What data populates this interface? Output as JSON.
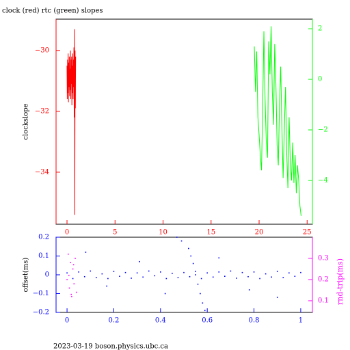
{
  "chart_data": [
    {
      "type": "line",
      "title": "clock (red) rtc (green) slopes",
      "ylabel": "clockslope",
      "xcolor": "#ff0000",
      "ycolor": "#ff0000",
      "y2color": "#00ff00",
      "xlim": [
        -1.14,
        25.55
      ],
      "xticks": [
        0,
        5,
        10,
        15,
        20,
        25
      ],
      "ylim": [
        -35.71,
        -28.97
      ],
      "yticks": [
        {
          "value": -30,
          "label": "−30"
        },
        {
          "value": -32,
          "label": "−32"
        },
        {
          "value": -34,
          "label": "−34"
        }
      ],
      "y2lim": [
        -5.73,
        2.38
      ],
      "y2ticks": [
        2,
        0,
        {
          "value": -2,
          "label": "−2"
        },
        {
          "value": -4,
          "label": "−4"
        }
      ],
      "series": [
        {
          "color": "#ff0000",
          "x": [
            0,
            0.03,
            0.06,
            0.09,
            0.12,
            0.15,
            0.18,
            0.21,
            0.24,
            0.27,
            0.3,
            0.33,
            0.36,
            0.39,
            0.42,
            0.45,
            0.48,
            0.51,
            0.54,
            0.57,
            0.6,
            0.63,
            0.66,
            0.69,
            0.72,
            0.75,
            0.78,
            0.81,
            0.84,
            0.87,
            0.9
          ],
          "values": [
            -30.5,
            -31.6,
            -30.3,
            -31.4,
            -30.1,
            -31.7,
            -30.4,
            -31.2,
            -30.2,
            -31.5,
            -30.6,
            -31.3,
            -30.0,
            -31.6,
            -30.3,
            -31.1,
            -30.2,
            -31.8,
            -30.5,
            -31.4,
            -30.1,
            -31.6,
            -30.3,
            -31.2,
            -29.9,
            -32.2,
            -29.3,
            -35.4,
            -30.0,
            -31.9,
            -30.2
          ]
        },
        {
          "color": "#00ff00",
          "axis": "y2",
          "x": [
            19.5,
            19.625,
            19.75,
            19.875,
            20,
            20.125,
            20.25,
            20.375,
            20.5,
            20.625,
            20.75,
            20.875,
            21,
            21.125,
            21.25,
            21.375,
            21.5,
            21.625,
            21.75,
            21.875,
            22,
            22.125,
            22.25,
            22.375,
            22.5,
            22.625,
            22.75,
            22.875,
            23,
            23.125,
            23.25,
            23.375,
            23.5,
            23.625,
            23.75,
            23.875,
            24,
            24.125,
            24.25,
            24.375
          ],
          "values": [
            1.3,
            -0.5,
            1.1,
            -1.5,
            -2.2,
            -3.0,
            -3.6,
            -1.0,
            1.9,
            -0.8,
            -2.5,
            -3.1,
            1.5,
            0.2,
            2.1,
            -0.5,
            -1.8,
            1.4,
            -0.2,
            -2.6,
            -3.4,
            -1.0,
            0.5,
            -1.9,
            -3.9,
            -2.0,
            -0.3,
            -2.9,
            -4.3,
            -1.5,
            -3.3,
            -4.0,
            -2.5,
            -4.1,
            -3.0,
            -4.5,
            -3.4,
            -4.0,
            -5.0,
            -5.4
          ]
        }
      ]
    },
    {
      "type": "scatter",
      "ylabel": "offset(ms)",
      "y2label": "rnd-trip(ms)",
      "xcolor": "#0000ff",
      "ycolor": "#0000ff",
      "y2color": "#ff00ff",
      "xlim": [
        -0.047,
        1.05
      ],
      "xticks": [
        0,
        0.2,
        0.4,
        0.6,
        0.8,
        1
      ],
      "ylim": [
        -0.2,
        0.2
      ],
      "yticks": [
        0.2,
        0.1,
        0,
        {
          "value": -0.1,
          "label": "−0.1"
        },
        {
          "value": -0.2,
          "label": "−0.2"
        }
      ],
      "y2lim": [
        0.045,
        0.4
      ],
      "y2ticks": [
        0.3,
        0.2,
        0.1
      ],
      "series": [
        {
          "color": "#0000ff",
          "x": [
            0,
            0.025,
            0.05,
            0.075,
            0.1,
            0.125,
            0.15,
            0.175,
            0.2,
            0.225,
            0.25,
            0.275,
            0.3,
            0.325,
            0.35,
            0.375,
            0.4,
            0.425,
            0.45,
            0.475,
            0.5,
            0.525,
            0.55,
            0.575,
            0.6,
            0.625,
            0.65,
            0.675,
            0.7,
            0.725,
            0.75,
            0.775,
            0.8,
            0.825,
            0.85,
            0.875,
            0.9,
            0.925,
            0.95,
            0.975,
            1.0,
            0.08,
            0.31,
            0.42,
            0.65,
            0.78,
            0.9,
            0.17,
            0.47,
            0.49,
            0.52,
            0.53,
            0.54,
            0.55,
            0.56,
            0.57,
            0.58,
            0.59
          ],
          "values": [
            0.01,
            -0.02,
            0.015,
            -0.01,
            0.02,
            -0.015,
            0.005,
            -0.02,
            0.018,
            -0.008,
            0.012,
            -0.018,
            0.01,
            -0.012,
            0.02,
            -0.005,
            0.015,
            -0.02,
            0.008,
            -0.015,
            0.012,
            -0.01,
            0.018,
            -0.02,
            0.01,
            -0.012,
            0.015,
            -0.008,
            0.02,
            -0.018,
            0.012,
            -0.01,
            0.015,
            -0.02,
            0.005,
            -0.012,
            0.018,
            -0.015,
            0.01,
            -0.008,
            0.012,
            0.12,
            0.07,
            -0.1,
            0.09,
            -0.08,
            -0.12,
            -0.06,
            0.2,
            0.18,
            0.14,
            0.1,
            0.06,
            0.0,
            -0.05,
            -0.1,
            -0.15,
            -0.19
          ]
        },
        {
          "color": "#ff00ff",
          "axis": "y2",
          "x": [
            0.0,
            0.005,
            0.01,
            0.015,
            0.02,
            0.025,
            0.03,
            0.035,
            0.04,
            0.008,
            0.018,
            0.028
          ],
          "values": [
            0.2,
            0.32,
            0.16,
            0.28,
            0.12,
            0.25,
            0.18,
            0.3,
            0.14,
            0.22,
            0.13,
            0.27
          ]
        }
      ]
    }
  ],
  "footer": "2023-03-19 boson.physics.ubc.ca"
}
